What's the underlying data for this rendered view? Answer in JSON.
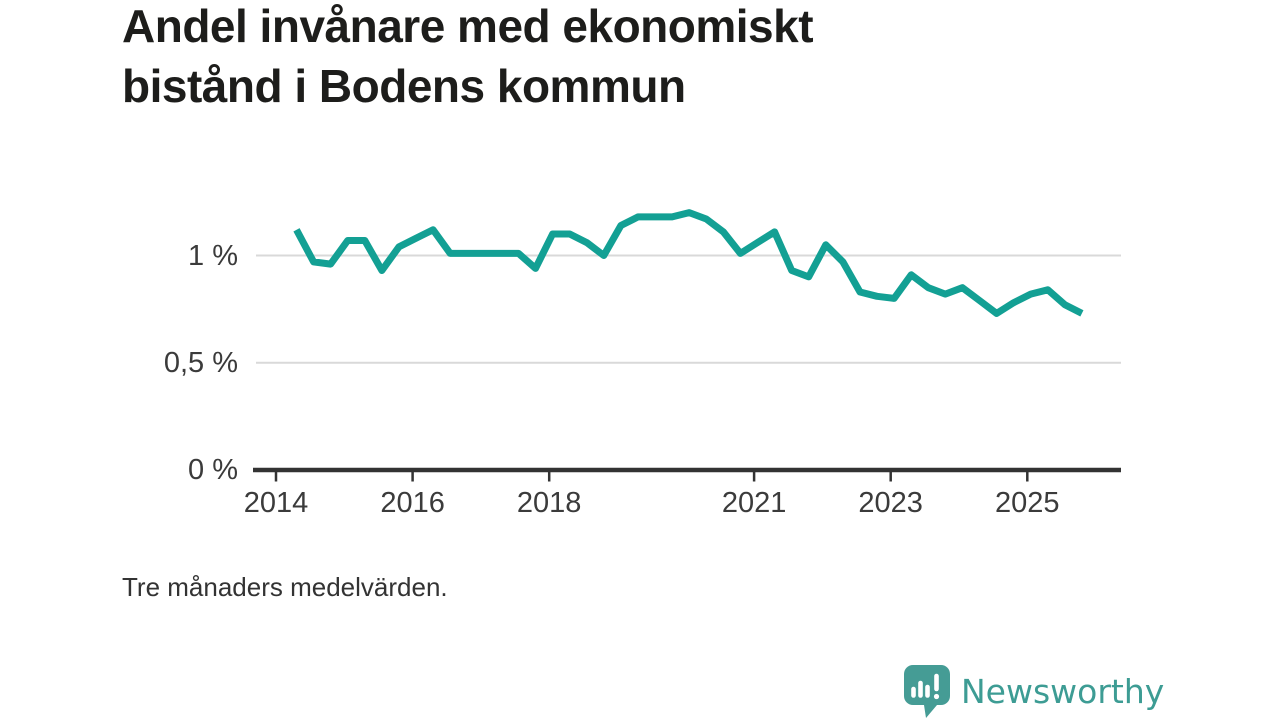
{
  "header": {
    "title_lines": [
      "Andel invånare med ekonomiskt",
      "bistånd i Bodens kommun"
    ]
  },
  "footnote": "Tre månaders medelvärden.",
  "branding": {
    "logo_text": "Newsworthy",
    "logo_icon": "newsworthy-speech-bubble-bar-chart-icon",
    "color": "#3d9c94"
  },
  "chart_data": {
    "type": "line",
    "title": "Andel invånare med ekonomiskt bistånd i Bodens kommun",
    "note": "Tre månaders medelvärden.",
    "unit": "%",
    "grid": "horizontal",
    "legend": "none",
    "xlim": [
      2013.7,
      2026.3
    ],
    "ylim": [
      0,
      1.3
    ],
    "x_ticks": [
      2014,
      2016,
      2018,
      2021,
      2023,
      2025
    ],
    "y_ticks": [
      {
        "value": 0,
        "label": "0 %"
      },
      {
        "value": 0.5,
        "label": "0,5 %"
      },
      {
        "value": 1,
        "label": "1 %"
      }
    ],
    "series": [
      {
        "name": "Andel invånare med ekonomiskt bistånd",
        "x_start": 2014.3,
        "x_step": 0.25,
        "values": [
          1.12,
          0.97,
          0.96,
          1.07,
          1.07,
          0.93,
          1.04,
          1.08,
          1.12,
          1.01,
          1.01,
          1.01,
          1.01,
          1.01,
          0.94,
          1.1,
          1.1,
          1.06,
          1.0,
          1.14,
          1.18,
          1.18,
          1.18,
          1.2,
          1.17,
          1.11,
          1.01,
          1.06,
          1.11,
          0.93,
          0.9,
          1.05,
          0.97,
          0.83,
          0.81,
          0.8,
          0.91,
          0.85,
          0.82,
          0.85,
          0.79,
          0.73,
          0.78,
          0.82,
          0.84,
          0.77,
          0.73
        ]
      }
    ],
    "colors": {
      "line": "#13a094",
      "grid": "#d9d9d9",
      "axis": "#333333",
      "text": "#3b3b3b"
    }
  }
}
